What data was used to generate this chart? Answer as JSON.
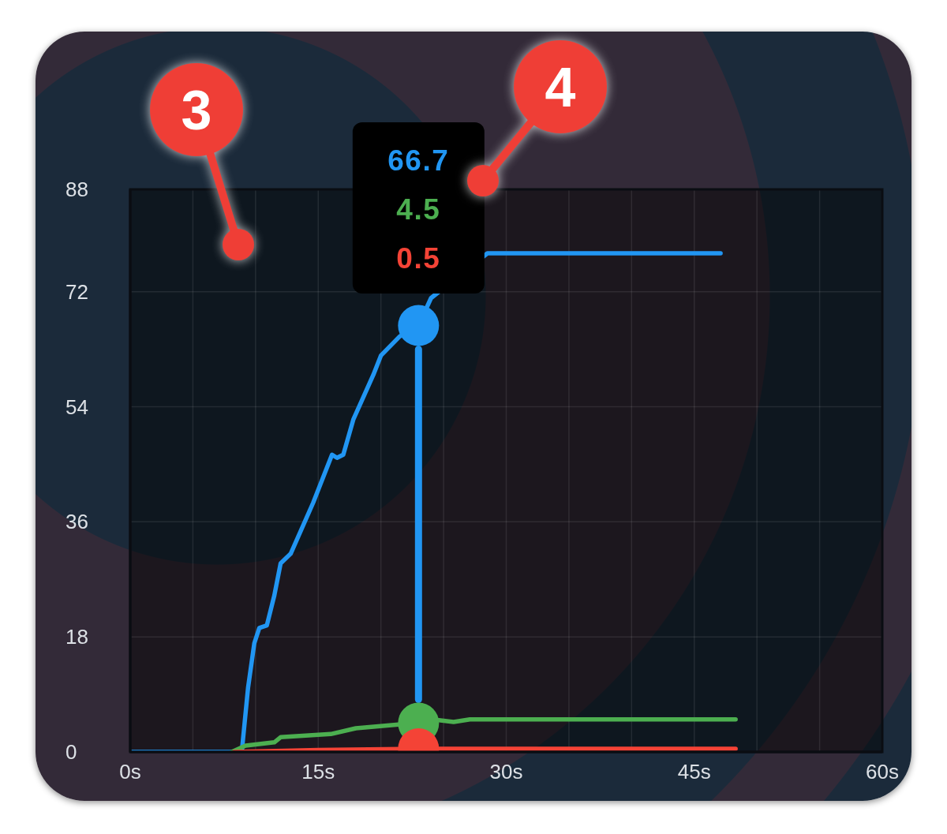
{
  "chart_data": {
    "type": "line",
    "xlim": [
      0,
      60
    ],
    "xticks": [
      {
        "value": 0,
        "label": "0s"
      },
      {
        "value": 5,
        "label": null
      },
      {
        "value": 10,
        "label": null
      },
      {
        "value": 15,
        "label": "15s"
      },
      {
        "value": 20,
        "label": null
      },
      {
        "value": 25,
        "label": null
      },
      {
        "value": 30,
        "label": "30s"
      },
      {
        "value": 35,
        "label": null
      },
      {
        "value": 40,
        "label": null
      },
      {
        "value": 45,
        "label": "45s"
      },
      {
        "value": 50,
        "label": null
      },
      {
        "value": 55,
        "label": null
      },
      {
        "value": 60,
        "label": "60s"
      }
    ],
    "ylim": [
      0,
      88
    ],
    "yticks": [
      0,
      18,
      36,
      54,
      72,
      88
    ],
    "grid": true,
    "series": [
      {
        "color": "#2196f3",
        "x": [
          0,
          8.9,
          9.4,
          9.9,
          10.3,
          10.9,
          11.5,
          12.0,
          12.8,
          14.6,
          16.1,
          16.5,
          17.0,
          17.8,
          19.4,
          20.0,
          21.5,
          23,
          24.0,
          28.5,
          47.1
        ],
        "values": [
          0,
          0,
          10,
          17,
          19.4,
          19.8,
          24.5,
          29.5,
          31,
          39,
          46.5,
          46,
          46.5,
          52,
          59,
          62,
          65,
          66.7,
          71,
          78,
          78
        ]
      },
      {
        "color": "#4caf50",
        "x": [
          8.1,
          9.2,
          11.5,
          12.0,
          16.0,
          18.0,
          21.4,
          23,
          24.5,
          25.8,
          27.1,
          48.3
        ],
        "values": [
          0,
          1,
          1.5,
          2.3,
          2.8,
          3.7,
          4.3,
          4.5,
          5.0,
          4.7,
          5.1,
          5.1
        ]
      },
      {
        "color": "#f44336",
        "x": [
          8.3,
          15,
          23,
          48.3
        ],
        "values": [
          0,
          0.3,
          0.5,
          0.5
        ]
      },
      {
        "type": "line",
        "color": "#2196f3",
        "x": [
          23,
          23
        ],
        "values": [
          8.2,
          63
        ]
      },
      {
        "type": "scatter",
        "x": [
          23,
          23,
          23
        ],
        "values": [
          66.7,
          4.5,
          0.5
        ],
        "colors": [
          "#2196f3",
          "#4caf50",
          "#f44336"
        ]
      }
    ],
    "annotations": [
      "3",
      "4",
      "66.7",
      "4.5",
      "0.5"
    ]
  }
}
